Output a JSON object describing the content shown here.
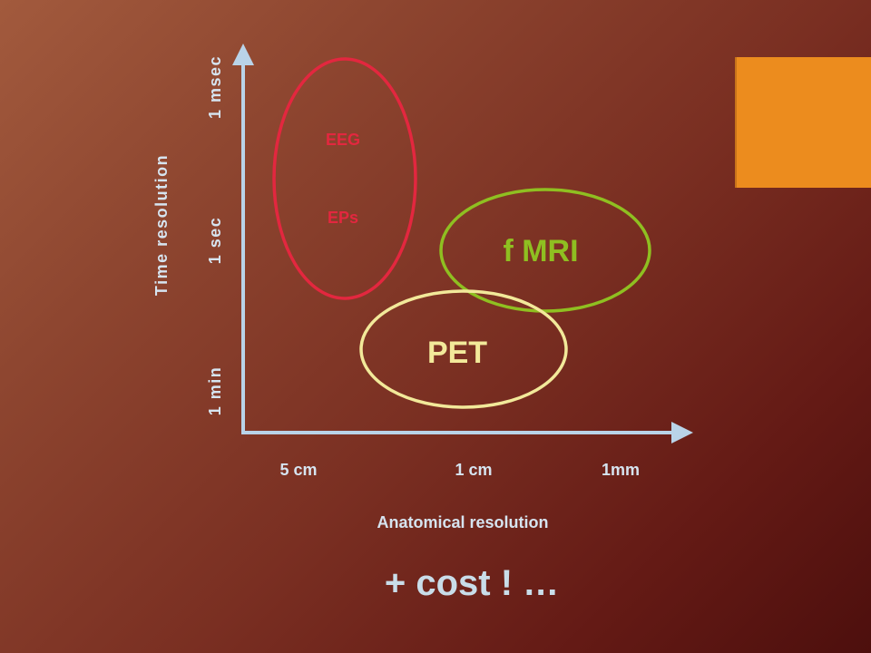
{
  "diagram": {
    "y_axis": {
      "title": "Time resolution",
      "ticks": [
        "1 msec",
        "1 sec",
        "1 min"
      ]
    },
    "x_axis": {
      "title": "Anatomical resolution",
      "ticks": [
        "5 cm",
        "1 cm",
        "1mm"
      ]
    },
    "modalities": {
      "eeg": {
        "label": "EEG",
        "color": "#e3273f"
      },
      "eps": {
        "label": "EPs",
        "color": "#e3273f"
      },
      "fmri": {
        "label": "f MRI",
        "color": "#8fbf21"
      },
      "pet": {
        "label": "PET",
        "color": "#f2e99a"
      }
    },
    "axis_color": "#b9d3e8"
  },
  "footer": {
    "cost_text": "+ cost ! …"
  },
  "colors": {
    "accent_orange": "#ec8c1e",
    "text_light": "#d6e4f0"
  }
}
